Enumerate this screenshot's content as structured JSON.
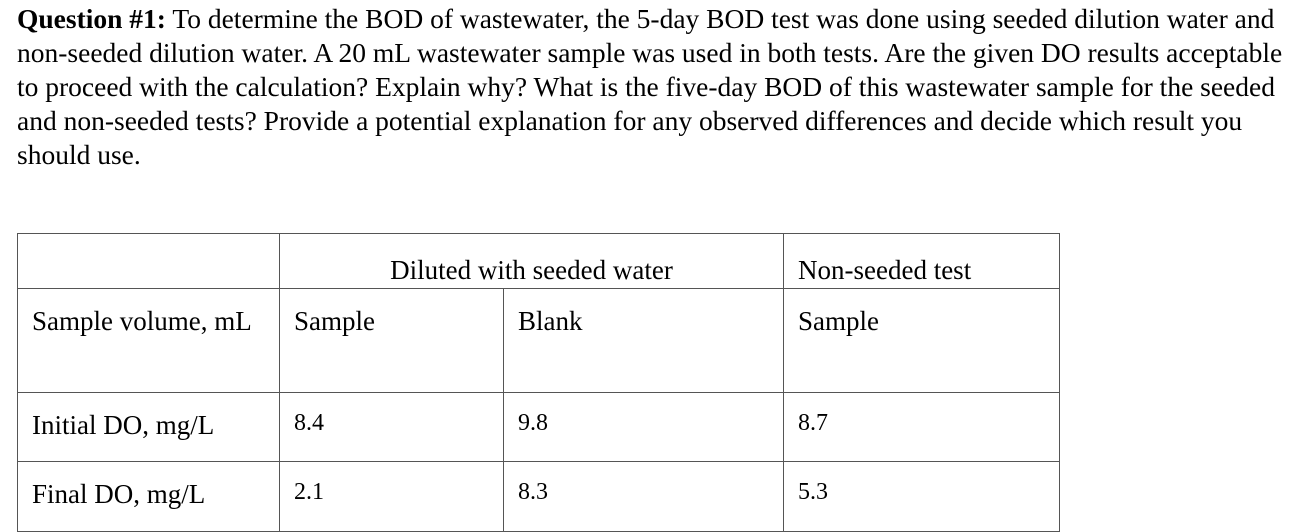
{
  "question": {
    "label": "Question #1:",
    "text": " To determine the BOD of wastewater, the 5-day BOD test was done using seeded dilution water and non-seeded dilution water. A 20 mL wastewater sample was used in both tests. Are the given DO results acceptable to proceed with the calculation? Explain why? What is the five-day BOD of this wastewater sample for the seeded and non-seeded tests? Provide a potential explanation for any observed differences and decide which result you should use."
  },
  "table": {
    "header_seeded": "Diluted with seeded water",
    "header_nonseeded": "Non-seeded test",
    "rows": [
      {
        "label": "Sample volume, mL",
        "seeded_sample": "Sample",
        "seeded_blank": "Blank",
        "nonseeded_sample": "Sample"
      },
      {
        "label": "Initial DO, mg/L",
        "seeded_sample": "8.4",
        "seeded_blank": "9.8",
        "nonseeded_sample": "8.7"
      },
      {
        "label": "Final DO, mg/L",
        "seeded_sample": "2.1",
        "seeded_blank": "8.3",
        "nonseeded_sample": "5.3"
      }
    ]
  }
}
